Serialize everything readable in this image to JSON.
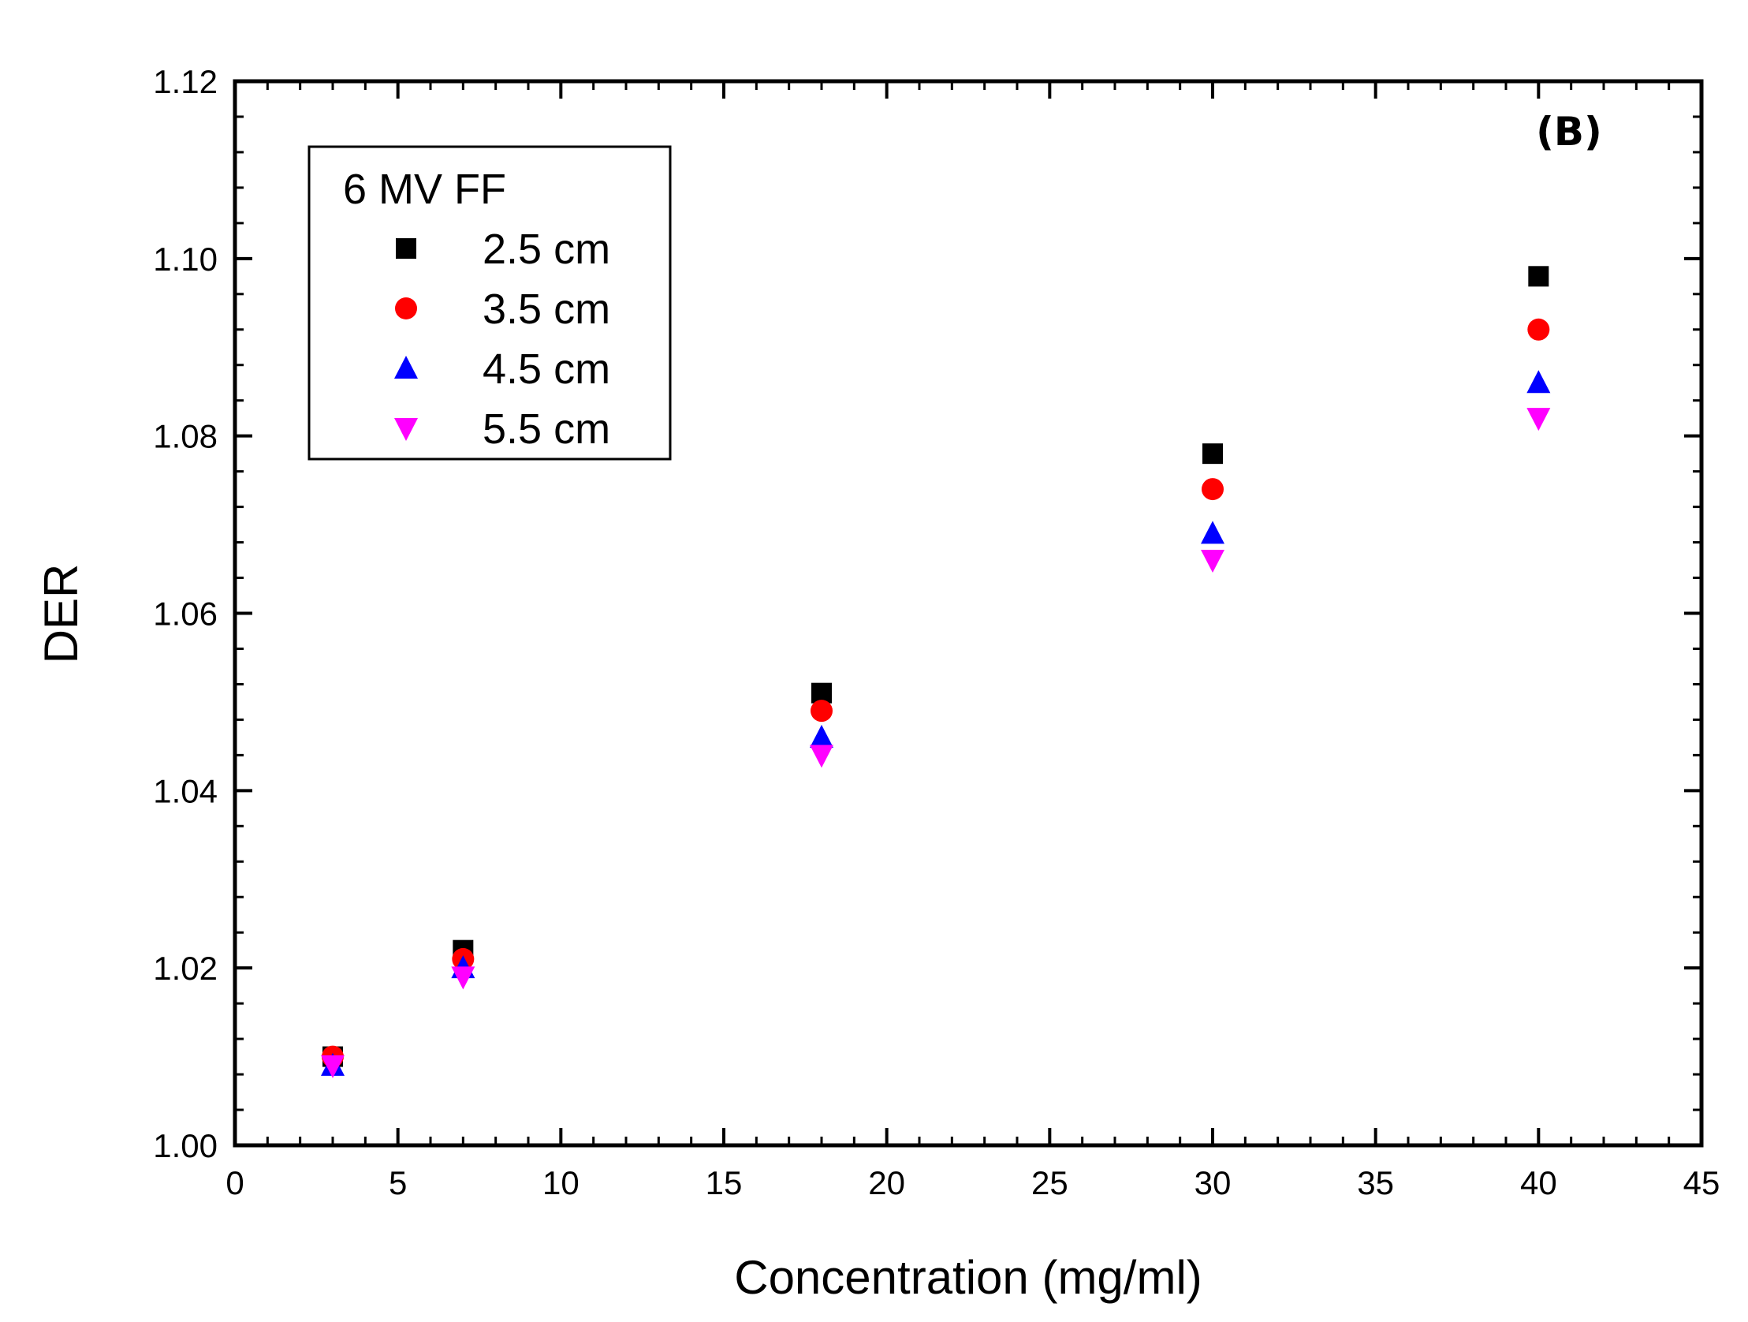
{
  "chart_data": {
    "type": "scatter",
    "panel_label": "(B)",
    "xlabel": "Concentration (mg/ml)",
    "ylabel": "DER",
    "xlim": [
      0,
      45
    ],
    "ylim": [
      1.0,
      1.12
    ],
    "x_ticks": [
      0,
      5,
      10,
      15,
      20,
      25,
      30,
      35,
      40,
      45
    ],
    "x_tick_labels": [
      "0",
      "5",
      "10",
      "15",
      "20",
      "25",
      "30",
      "35",
      "40",
      "45"
    ],
    "y_ticks": [
      1.0,
      1.02,
      1.04,
      1.06,
      1.08,
      1.1,
      1.12
    ],
    "y_tick_labels": [
      "1.00",
      "1.02",
      "1.04",
      "1.06",
      "1.08",
      "1.10",
      "1.12"
    ],
    "grid": false,
    "legend": {
      "title": "6 MV FF",
      "placement": "top-left"
    },
    "x": [
      3,
      7,
      18,
      30,
      40
    ],
    "series": [
      {
        "name": "2.5 cm",
        "marker": "square",
        "color": "#000000",
        "values": [
          1.01,
          1.022,
          1.051,
          1.078,
          1.098
        ]
      },
      {
        "name": "3.5 cm",
        "marker": "circle",
        "color": "#ff0000",
        "values": [
          1.01,
          1.021,
          1.049,
          1.074,
          1.092
        ]
      },
      {
        "name": "4.5 cm",
        "marker": "triangle-up",
        "color": "#0000ff",
        "values": [
          1.009,
          1.02,
          1.046,
          1.069,
          1.086
        ]
      },
      {
        "name": "5.5 cm",
        "marker": "triangle-down",
        "color": "#ff00ff",
        "values": [
          1.009,
          1.019,
          1.044,
          1.066,
          1.082
        ]
      }
    ]
  }
}
